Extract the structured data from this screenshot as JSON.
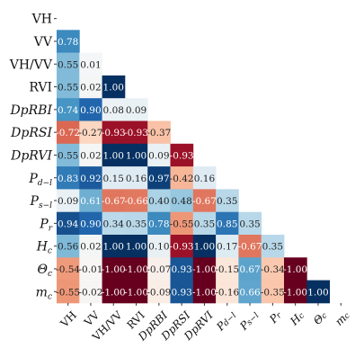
{
  "chart_data": {
    "type": "heatmap",
    "subtype": "lower-triangular correlation matrix",
    "variables": [
      {
        "label": "VH",
        "italic": false
      },
      {
        "label": "VV",
        "italic": false
      },
      {
        "label": "VH/VV",
        "italic": false
      },
      {
        "label": "RVI",
        "italic": false
      },
      {
        "label": "DpRBI",
        "italic": true
      },
      {
        "label": "DpRSI",
        "italic": true
      },
      {
        "label": "DpRVI",
        "italic": true
      },
      {
        "label": "Pd−l",
        "italic": true
      },
      {
        "label": "Ps−l",
        "italic": true
      },
      {
        "label": "Pr",
        "italic": true
      },
      {
        "label": "Hc",
        "italic": true
      },
      {
        "label": "Θc",
        "italic": true
      },
      {
        "label": "mc",
        "italic": true
      }
    ],
    "matrix": [
      [],
      [
        0.78
      ],
      [
        0.55,
        0.01
      ],
      [
        0.55,
        0.02,
        1.0
      ],
      [
        0.74,
        0.9,
        0.08,
        0.09
      ],
      [
        -0.72,
        -0.27,
        -0.93,
        -0.93,
        -0.37
      ],
      [
        0.55,
        0.02,
        1.0,
        1.0,
        0.09,
        -0.93
      ],
      [
        0.83,
        0.92,
        0.15,
        0.16,
        0.97,
        -0.42,
        0.16
      ],
      [
        0.09,
        0.61,
        -0.67,
        -0.66,
        0.4,
        0.48,
        -0.67,
        0.35
      ],
      [
        0.94,
        0.9,
        0.34,
        0.35,
        0.78,
        -0.55,
        0.35,
        0.85,
        0.35
      ],
      [
        0.56,
        0.02,
        1.0,
        1.0,
        0.1,
        -0.93,
        1.0,
        0.17,
        -0.67,
        0.35
      ],
      [
        -0.54,
        -0.01,
        -1.0,
        -1.0,
        -0.07,
        0.93,
        -1.0,
        -0.15,
        0.67,
        -0.34,
        -1.0
      ],
      [
        -0.55,
        -0.02,
        -1.0,
        -1.0,
        -0.09,
        0.93,
        -1.0,
        -0.16,
        0.66,
        -0.35,
        -1.0,
        1.0
      ]
    ],
    "value_range": [
      -1,
      1
    ],
    "colormap": {
      "negative": "#67001f",
      "neutral": "#f7f7f7",
      "positive": "#053061"
    },
    "grid": false,
    "legend": "none"
  }
}
